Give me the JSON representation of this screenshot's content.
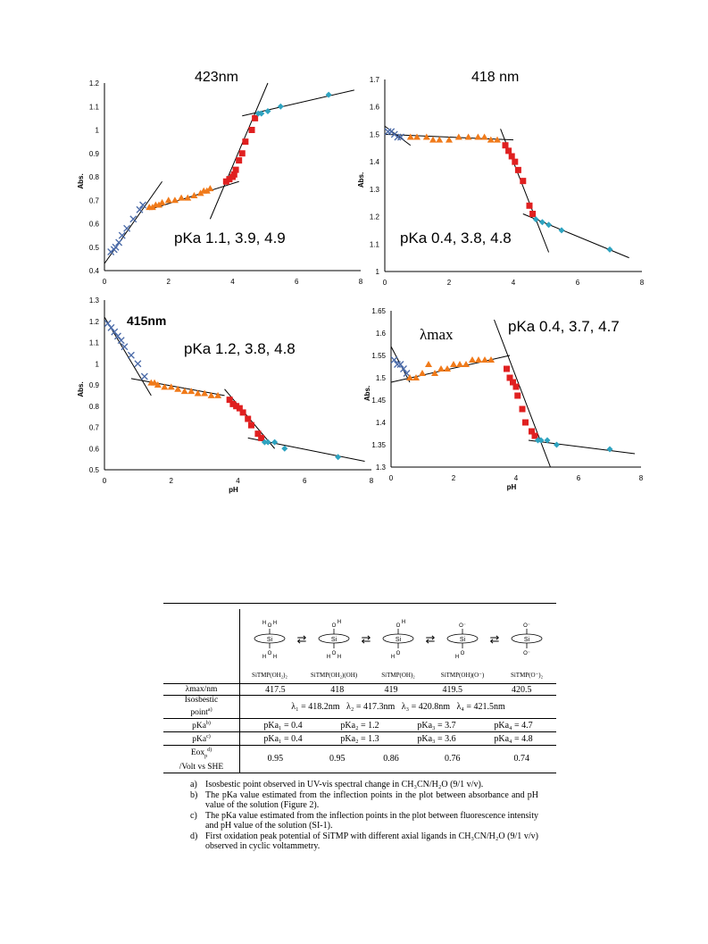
{
  "charts": [
    {
      "label": "423nm",
      "pka": "pKa  1.1, 3.9, 4.9",
      "xlabel": "",
      "ylabel": "Abs.",
      "yticks": [
        "1.2",
        "1.1",
        "1",
        "0.9",
        "0.8",
        "0.7",
        "0.6",
        "0.5",
        "0.4"
      ],
      "xticks": [
        "0",
        "2",
        "4",
        "6",
        "8"
      ]
    },
    {
      "label": "418 nm",
      "pka": "pKa  0.4, 3.8, 4.8",
      "xlabel": "",
      "ylabel": "Abs.",
      "yticks": [
        "1.7",
        "1.6",
        "1.5",
        "1.4",
        "1.3",
        "1.2",
        "1.1",
        "1"
      ],
      "xticks": [
        "0",
        "2",
        "4",
        "6",
        "8"
      ]
    },
    {
      "label": "415nm",
      "pka": "pKa  1.2, 3.8, 4.8",
      "xlabel": "pH",
      "ylabel": "Abs.",
      "yticks": [
        "1.3",
        "1.2",
        "1.1",
        "1",
        "0.9",
        "0.8",
        "0.7",
        "0.6",
        "0.5"
      ],
      "xticks": [
        "0",
        "2",
        "4",
        "6",
        "8"
      ]
    },
    {
      "label": "λmax",
      "pka": "pKa  0.4, 3.7, 4.7",
      "xlabel": "pH",
      "ylabel": "Abs.",
      "yticks": [
        "1.65",
        "1.6",
        "1.55",
        "1.5",
        "1.45",
        "1.4",
        "1.35",
        "1.3"
      ],
      "xticks": [
        "0",
        "2",
        "4",
        "6",
        "8"
      ]
    }
  ],
  "chart_data": [
    {
      "type": "scatter",
      "title": "423nm",
      "xlabel": "",
      "ylabel": "Abs.",
      "xlim": [
        0,
        8
      ],
      "ylim": [
        0.4,
        1.2
      ],
      "annotation": "pKa  1.1, 3.9, 4.9",
      "series": [
        {
          "marker": "x",
          "color": "#4a6aa8",
          "x": [
            0.2,
            0.3,
            0.35,
            0.45,
            0.55,
            0.7,
            0.9,
            1.1,
            1.2
          ],
          "y": [
            0.48,
            0.49,
            0.5,
            0.52,
            0.55,
            0.58,
            0.62,
            0.66,
            0.68
          ]
        },
        {
          "marker": "triangle",
          "color": "#f07a1a",
          "x": [
            1.4,
            1.5,
            1.6,
            1.7,
            1.8,
            2.0,
            2.2,
            2.4,
            2.6,
            2.8,
            3.0,
            3.1,
            3.2,
            3.3
          ],
          "y": [
            0.67,
            0.67,
            0.68,
            0.68,
            0.69,
            0.7,
            0.7,
            0.71,
            0.71,
            0.72,
            0.73,
            0.74,
            0.74,
            0.75
          ]
        },
        {
          "marker": "square",
          "color": "#e02020",
          "x": [
            3.8,
            3.9,
            4.0,
            4.05,
            4.1,
            4.2,
            4.3,
            4.4,
            4.6,
            4.7
          ],
          "y": [
            0.78,
            0.79,
            0.8,
            0.81,
            0.83,
            0.87,
            0.9,
            0.95,
            1.0,
            1.05
          ]
        },
        {
          "marker": "diamond",
          "color": "#2ea3c0",
          "x": [
            4.8,
            4.9,
            5.1,
            5.5,
            7.0
          ],
          "y": [
            1.07,
            1.07,
            1.08,
            1.1,
            1.15
          ]
        }
      ],
      "fits": [
        {
          "x": [
            0,
            1.8
          ],
          "y": [
            0.43,
            0.78
          ]
        },
        {
          "x": [
            1.4,
            4.2
          ],
          "y": [
            0.66,
            0.78
          ]
        },
        {
          "x": [
            3.3,
            5.1
          ],
          "y": [
            0.62,
            1.2
          ]
        },
        {
          "x": [
            4.3,
            7.8
          ],
          "y": [
            1.06,
            1.17
          ]
        }
      ]
    },
    {
      "type": "scatter",
      "title": "418 nm",
      "xlabel": "",
      "ylabel": "Abs.",
      "xlim": [
        0,
        8
      ],
      "ylim": [
        1.0,
        1.7
      ],
      "annotation": "pKa  0.4, 3.8, 4.8",
      "series": [
        {
          "marker": "x",
          "color": "#4a6aa8",
          "x": [
            0.1,
            0.2,
            0.3,
            0.4,
            0.5
          ],
          "y": [
            1.51,
            1.51,
            1.5,
            1.49,
            1.49
          ]
        },
        {
          "marker": "triangle",
          "color": "#f07a1a",
          "x": [
            0.8,
            1.0,
            1.3,
            1.5,
            1.7,
            2.0,
            2.3,
            2.6,
            2.9,
            3.1,
            3.3,
            3.5
          ],
          "y": [
            1.49,
            1.49,
            1.49,
            1.48,
            1.48,
            1.48,
            1.49,
            1.49,
            1.49,
            1.49,
            1.48,
            1.48
          ]
        },
        {
          "marker": "square",
          "color": "#e02020",
          "x": [
            3.75,
            3.85,
            3.95,
            4.05,
            4.15,
            4.3,
            4.5,
            4.6
          ],
          "y": [
            1.46,
            1.44,
            1.42,
            1.4,
            1.37,
            1.33,
            1.24,
            1.21
          ]
        },
        {
          "marker": "diamond",
          "color": "#2ea3c0",
          "x": [
            4.7,
            4.9,
            5.1,
            5.5,
            7.0
          ],
          "y": [
            1.19,
            1.18,
            1.17,
            1.15,
            1.08
          ]
        }
      ],
      "fits": [
        {
          "x": [
            0,
            0.8
          ],
          "y": [
            1.53,
            1.46
          ]
        },
        {
          "x": [
            0,
            4.0
          ],
          "y": [
            1.5,
            1.48
          ]
        },
        {
          "x": [
            3.6,
            5.1
          ],
          "y": [
            1.52,
            1.07
          ]
        },
        {
          "x": [
            4.3,
            7.6
          ],
          "y": [
            1.21,
            1.05
          ]
        }
      ]
    },
    {
      "type": "scatter",
      "title": "415nm",
      "xlabel": "pH",
      "ylabel": "Abs.",
      "xlim": [
        0,
        8
      ],
      "ylim": [
        0.5,
        1.3
      ],
      "annotation": "pKa  1.2, 3.8, 4.8",
      "series": [
        {
          "marker": "x",
          "color": "#4a6aa8",
          "x": [
            0.1,
            0.2,
            0.3,
            0.4,
            0.5,
            0.6,
            0.8,
            1.0,
            1.2
          ],
          "y": [
            1.19,
            1.17,
            1.15,
            1.13,
            1.11,
            1.08,
            1.04,
            1.0,
            0.94
          ]
        },
        {
          "marker": "triangle",
          "color": "#f07a1a",
          "x": [
            1.4,
            1.5,
            1.6,
            1.8,
            2.0,
            2.2,
            2.4,
            2.6,
            2.8,
            3.0,
            3.2,
            3.4
          ],
          "y": [
            0.91,
            0.91,
            0.9,
            0.89,
            0.89,
            0.88,
            0.87,
            0.87,
            0.86,
            0.86,
            0.85,
            0.85
          ]
        },
        {
          "marker": "square",
          "color": "#e02020",
          "x": [
            3.75,
            3.85,
            3.95,
            4.05,
            4.15,
            4.3,
            4.4,
            4.6,
            4.7
          ],
          "y": [
            0.83,
            0.81,
            0.8,
            0.79,
            0.77,
            0.74,
            0.71,
            0.67,
            0.65
          ]
        },
        {
          "marker": "diamond",
          "color": "#2ea3c0",
          "x": [
            4.8,
            4.9,
            5.1,
            5.4,
            7.0
          ],
          "y": [
            0.63,
            0.63,
            0.63,
            0.6,
            0.56
          ]
        }
      ],
      "fits": [
        {
          "x": [
            0,
            1.4
          ],
          "y": [
            1.22,
            0.85
          ]
        },
        {
          "x": [
            0.8,
            3.6
          ],
          "y": [
            0.93,
            0.85
          ]
        },
        {
          "x": [
            3.6,
            5.1
          ],
          "y": [
            0.88,
            0.6
          ]
        },
        {
          "x": [
            4.3,
            7.8
          ],
          "y": [
            0.65,
            0.54
          ]
        }
      ]
    },
    {
      "type": "scatter",
      "title": "λmax",
      "xlabel": "pH",
      "ylabel": "Abs.",
      "xlim": [
        0,
        8
      ],
      "ylim": [
        1.3,
        1.65
      ],
      "annotation": "pKa  0.4, 3.7, 4.7",
      "series": [
        {
          "marker": "x",
          "color": "#4a6aa8",
          "x": [
            0.1,
            0.2,
            0.3,
            0.4,
            0.5
          ],
          "y": [
            1.54,
            1.53,
            1.53,
            1.52,
            1.51
          ]
        },
        {
          "marker": "triangle",
          "color": "#f07a1a",
          "x": [
            0.6,
            0.8,
            1.0,
            1.2,
            1.4,
            1.6,
            1.8,
            2.0,
            2.2,
            2.4,
            2.6,
            2.8,
            3.0,
            3.2
          ],
          "y": [
            1.5,
            1.5,
            1.51,
            1.53,
            1.51,
            1.52,
            1.52,
            1.53,
            1.53,
            1.53,
            1.54,
            1.54,
            1.54,
            1.54
          ]
        },
        {
          "marker": "square",
          "color": "#e02020",
          "x": [
            3.7,
            3.8,
            3.9,
            4.0,
            4.05,
            4.2,
            4.3,
            4.5,
            4.6
          ],
          "y": [
            1.52,
            1.5,
            1.49,
            1.48,
            1.46,
            1.43,
            1.4,
            1.38,
            1.37
          ]
        },
        {
          "marker": "diamond",
          "color": "#2ea3c0",
          "x": [
            4.7,
            4.8,
            5.0,
            5.3,
            7.0
          ],
          "y": [
            1.36,
            1.36,
            1.36,
            1.35,
            1.34
          ]
        }
      ],
      "fits": [
        {
          "x": [
            0,
            0.6
          ],
          "y": [
            1.57,
            1.49
          ]
        },
        {
          "x": [
            0,
            3.8
          ],
          "y": [
            1.49,
            1.55
          ]
        },
        {
          "x": [
            3.3,
            5.1
          ],
          "y": [
            1.63,
            1.3
          ]
        },
        {
          "x": [
            4.4,
            7.8
          ],
          "y": [
            1.36,
            1.33
          ]
        }
      ]
    }
  ],
  "table": {
    "species": [
      "SiTMP(OH₂)₂",
      "SiTMP(OH₂)(OH)",
      "SiTMP(OH)₂",
      "SiTMP(OH)(O⁻)",
      "SiTMP(O⁻)₂"
    ],
    "rows": {
      "lambda_label": "λmax/nm",
      "lambda_values": [
        "417.5",
        "418",
        "419",
        "419.5",
        "420.5"
      ],
      "iso_label_1": "Isosbestic",
      "iso_label_2": "point",
      "iso_label_sup": "a)",
      "iso_text": "λ₁ = 418.2nm   λ₂ = 417.3nm   λ₃ = 420.8nm   λ₄ = 421.5nm",
      "pka_b_label": "pKa",
      "pka_b_sup": "b)",
      "pka_b_values": [
        "pKa₁ = 0.4",
        "pKa₂ = 1.2",
        "pKa₃ = 3.7",
        "pKa₄ = 4.7"
      ],
      "pka_c_label": "pKa",
      "pka_c_sup": "c)",
      "pka_c_values": [
        "pKa₁ = 0.4",
        "pKa₂ = 1.3",
        "pKa₃ = 3.6",
        "pKa₄ = 4.8"
      ],
      "eox_label_1": "Eox",
      "eox_label_sub": "p",
      "eox_label_sup": "d)",
      "eox_label_2": "/Volt vs SHE",
      "eox_values": [
        "0.95",
        "0.95",
        "0.86",
        "0.76",
        "0.74"
      ]
    },
    "structure_labels": {
      "si": "Si",
      "o": "O",
      "h": "H",
      "om": "O⁻"
    },
    "arrow": "⇄"
  },
  "notes": [
    {
      "key": "a)",
      "text": "Isosbestic point observed in UV-vis spectral change in CH₃CN/H₂O (9/1 v/v)."
    },
    {
      "key": "b)",
      "text": "The pKa value estimated from the inflection points in the plot between absorbance and pH value of the solution (Figure 2)."
    },
    {
      "key": "c)",
      "text": "The pKa value estimated from the inflection points in the plot between fluorescence intensity and pH value of the solution (SI-1)."
    },
    {
      "key": "d)",
      "text": "First oxidation peak potential of SiTMP with different axial ligands in CH₃CN/H₂O (9/1 v/v) observed in cyclic voltammetry."
    }
  ]
}
